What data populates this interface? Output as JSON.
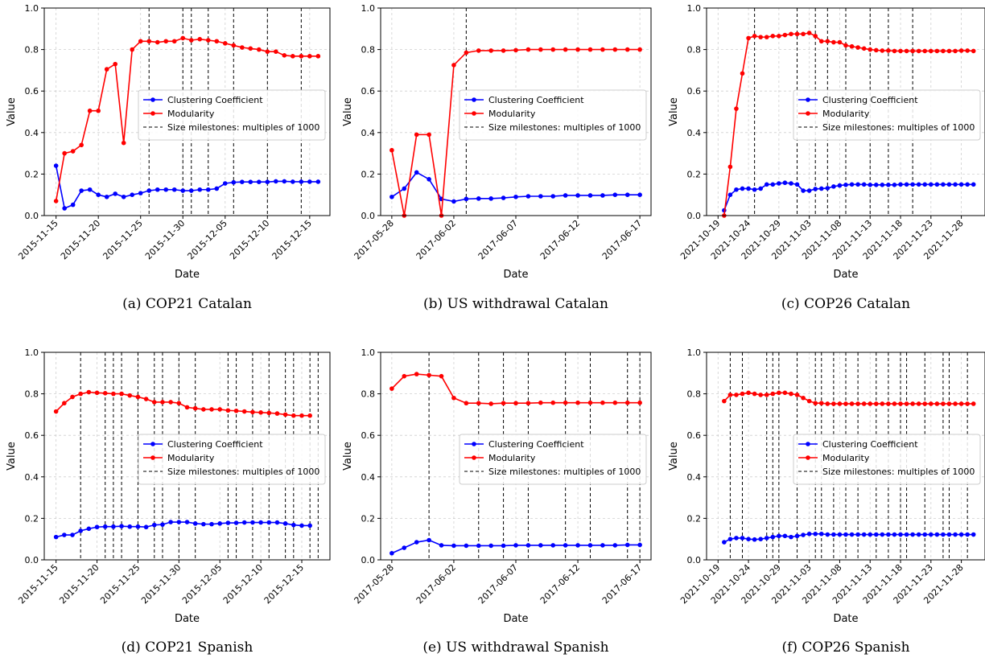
{
  "legend": {
    "clustering": "Clustering Coefficient",
    "modularity": "Modularity",
    "milestones": "Size milestones: multiples of 1000"
  },
  "colors": {
    "clustering": "#0000ff",
    "modularity": "#ff0000",
    "milestones": "#000000",
    "grid": "#b0b0b0"
  },
  "chart_data": [
    {
      "type": "line",
      "caption": "(a)  COP21 Catalan",
      "xlabel": "Date",
      "ylabel": "Value",
      "ylim": [
        0,
        1.0
      ],
      "yticks": [
        "0.0",
        "0.2",
        "0.4",
        "0.6",
        "0.8",
        "1.0"
      ],
      "x_start": "2015-11-15",
      "xticks": [
        "2015-11-15",
        "2015-11-20",
        "2015-11-25",
        "2015-11-30",
        "2015-12-05",
        "2015-12-10",
        "2015-12-15"
      ],
      "legend_position": "center-right",
      "series": [
        {
          "name": "Clustering Coefficient",
          "values": [
            0.24,
            0.035,
            0.052,
            0.12,
            0.125,
            0.1,
            0.09,
            0.105,
            0.09,
            0.1,
            0.108,
            0.12,
            0.125,
            0.125,
            0.125,
            0.12,
            0.12,
            0.125,
            0.125,
            0.13,
            0.155,
            0.16,
            0.162,
            0.162,
            0.162,
            0.162,
            0.165,
            0.165,
            0.163,
            0.163,
            0.163,
            0.163
          ]
        },
        {
          "name": "Modularity",
          "values": [
            0.07,
            0.3,
            0.31,
            0.34,
            0.505,
            0.505,
            0.705,
            0.73,
            0.35,
            0.8,
            0.84,
            0.84,
            0.835,
            0.84,
            0.84,
            0.855,
            0.845,
            0.85,
            0.845,
            0.84,
            0.83,
            0.82,
            0.81,
            0.805,
            0.8,
            0.79,
            0.79,
            0.772,
            0.768,
            0.768,
            0.768,
            0.768
          ]
        }
      ],
      "milestones": [
        "2015-11-26",
        "2015-11-30",
        "2015-12-01",
        "2015-12-03",
        "2015-12-06",
        "2015-12-10",
        "2015-12-14"
      ]
    },
    {
      "type": "line",
      "caption": "(b)  US withdrawal Catalan",
      "xlabel": "Date",
      "ylabel": "Value",
      "ylim": [
        0,
        1.0
      ],
      "yticks": [
        "0.0",
        "0.2",
        "0.4",
        "0.6",
        "0.8",
        "1.0"
      ],
      "x_start": "2017-05-28",
      "xticks": [
        "2017-05-28",
        "2017-06-02",
        "2017-06-07",
        "2017-06-12",
        "2017-06-17"
      ],
      "legend_position": "center-right",
      "series": [
        {
          "name": "Clustering Coefficient",
          "values": [
            0.09,
            0.13,
            0.208,
            0.175,
            0.08,
            0.068,
            0.08,
            0.082,
            0.082,
            0.085,
            0.09,
            0.093,
            0.093,
            0.093,
            0.097,
            0.097,
            0.097,
            0.097,
            0.1,
            0.1,
            0.1
          ]
        },
        {
          "name": "Modularity",
          "values": [
            0.315,
            0.0,
            0.39,
            0.39,
            0.0,
            0.725,
            0.785,
            0.795,
            0.795,
            0.795,
            0.797,
            0.8,
            0.8,
            0.8,
            0.8,
            0.8,
            0.8,
            0.8,
            0.8,
            0.8,
            0.8
          ]
        }
      ],
      "milestones": [
        "2017-06-03"
      ]
    },
    {
      "type": "line",
      "caption": "(c)  COP26 Catalan",
      "xlabel": "Date",
      "ylabel": "Value",
      "ylim": [
        0,
        1.0
      ],
      "yticks": [
        "0.0",
        "0.2",
        "0.4",
        "0.6",
        "0.8",
        "1.0"
      ],
      "x_start": "2021-10-20",
      "xticks": [
        "2021-10-19",
        "2021-10-24",
        "2021-10-29",
        "2021-11-03",
        "2021-11-08",
        "2021-11-13",
        "2021-11-18",
        "2021-11-23",
        "2021-11-28"
      ],
      "legend_position": "center-right",
      "series": [
        {
          "name": "Clustering Coefficient",
          "values": [
            0.025,
            0.1,
            0.125,
            0.13,
            0.13,
            0.125,
            0.13,
            0.15,
            0.15,
            0.155,
            0.158,
            0.155,
            0.15,
            0.12,
            0.12,
            0.128,
            0.13,
            0.132,
            0.14,
            0.145,
            0.148,
            0.15,
            0.15,
            0.15,
            0.148,
            0.148,
            0.148,
            0.148,
            0.148,
            0.15,
            0.15,
            0.15,
            0.15,
            0.15,
            0.15,
            0.15,
            0.15,
            0.15,
            0.15,
            0.15,
            0.15,
            0.15
          ]
        },
        {
          "name": "Modularity",
          "values": [
            0.0,
            0.235,
            0.515,
            0.685,
            0.855,
            0.865,
            0.86,
            0.86,
            0.865,
            0.865,
            0.87,
            0.875,
            0.875,
            0.875,
            0.88,
            0.865,
            0.84,
            0.84,
            0.835,
            0.835,
            0.82,
            0.815,
            0.81,
            0.805,
            0.8,
            0.797,
            0.795,
            0.795,
            0.793,
            0.793,
            0.793,
            0.793,
            0.793,
            0.793,
            0.793,
            0.793,
            0.793,
            0.793,
            0.793,
            0.795,
            0.795,
            0.793
          ]
        }
      ],
      "milestones": [
        "2021-10-25",
        "2021-11-01",
        "2021-11-04",
        "2021-11-06",
        "2021-11-09",
        "2021-11-13",
        "2021-11-16",
        "2021-11-20"
      ]
    },
    {
      "type": "line",
      "caption": "(d)  COP21 Spanish",
      "xlabel": "Date",
      "ylabel": "Value",
      "ylim": [
        0,
        1.0
      ],
      "yticks": [
        "0.0",
        "0.2",
        "0.4",
        "0.6",
        "0.8",
        "1.0"
      ],
      "x_start": "2015-11-15",
      "xticks": [
        "2015-11-15",
        "2015-11-20",
        "2015-11-25",
        "2015-11-30",
        "2015-12-05",
        "2015-12-10",
        "2015-12-15"
      ],
      "legend_position": "center-right",
      "series": [
        {
          "name": "Clustering Coefficient",
          "values": [
            0.11,
            0.12,
            0.12,
            0.14,
            0.15,
            0.158,
            0.16,
            0.16,
            0.162,
            0.16,
            0.16,
            0.158,
            0.168,
            0.17,
            0.182,
            0.182,
            0.182,
            0.175,
            0.172,
            0.172,
            0.175,
            0.178,
            0.178,
            0.18,
            0.18,
            0.18,
            0.18,
            0.18,
            0.175,
            0.168,
            0.165,
            0.165
          ]
        },
        {
          "name": "Modularity",
          "values": [
            0.715,
            0.755,
            0.785,
            0.8,
            0.808,
            0.805,
            0.803,
            0.8,
            0.8,
            0.792,
            0.785,
            0.775,
            0.76,
            0.76,
            0.76,
            0.755,
            0.735,
            0.73,
            0.725,
            0.725,
            0.725,
            0.72,
            0.718,
            0.715,
            0.712,
            0.71,
            0.708,
            0.705,
            0.7,
            0.695,
            0.695,
            0.695
          ]
        }
      ],
      "milestones": [
        "2015-11-18",
        "2015-11-21",
        "2015-11-22",
        "2015-11-23",
        "2015-11-25",
        "2015-11-27",
        "2015-11-28",
        "2015-11-30",
        "2015-12-02",
        "2015-12-06",
        "2015-12-07",
        "2015-12-09",
        "2015-12-11",
        "2015-12-13",
        "2015-12-14",
        "2015-12-16",
        "2015-12-17"
      ]
    },
    {
      "type": "line",
      "caption": "(e)  US withdrawal Spanish",
      "xlabel": "Date",
      "ylabel": "Value",
      "ylim": [
        0,
        1.0
      ],
      "yticks": [
        "0.0",
        "0.2",
        "0.4",
        "0.6",
        "0.8",
        "1.0"
      ],
      "x_start": "2017-05-28",
      "xticks": [
        "2017-05-28",
        "2017-06-02",
        "2017-06-07",
        "2017-06-12",
        "2017-06-17"
      ],
      "legend_position": "center-right",
      "series": [
        {
          "name": "Clustering Coefficient",
          "values": [
            0.032,
            0.058,
            0.085,
            0.095,
            0.07,
            0.068,
            0.068,
            0.068,
            0.068,
            0.068,
            0.07,
            0.07,
            0.07,
            0.07,
            0.07,
            0.07,
            0.07,
            0.07,
            0.07,
            0.072,
            0.072
          ]
        },
        {
          "name": "Modularity",
          "values": [
            0.825,
            0.885,
            0.895,
            0.89,
            0.885,
            0.78,
            0.755,
            0.755,
            0.752,
            0.755,
            0.755,
            0.755,
            0.757,
            0.757,
            0.757,
            0.757,
            0.757,
            0.757,
            0.757,
            0.757,
            0.757
          ]
        }
      ],
      "milestones": [
        "2017-05-31",
        "2017-06-04",
        "2017-06-06",
        "2017-06-08",
        "2017-06-11",
        "2017-06-13",
        "2017-06-16",
        "2017-06-17"
      ]
    },
    {
      "type": "line",
      "caption": "(f)  COP26 Spanish",
      "xlabel": "Date",
      "ylabel": "Value",
      "ylim": [
        0,
        1.0
      ],
      "yticks": [
        "0.0",
        "0.2",
        "0.4",
        "0.6",
        "0.8",
        "1.0"
      ],
      "x_start": "2021-10-20",
      "xticks": [
        "2021-10-19",
        "2021-10-24",
        "2021-10-29",
        "2021-11-03",
        "2021-11-08",
        "2021-11-13",
        "2021-11-18",
        "2021-11-23",
        "2021-11-28"
      ],
      "legend_position": "center-right",
      "series": [
        {
          "name": "Clustering Coefficient",
          "values": [
            0.085,
            0.1,
            0.105,
            0.105,
            0.1,
            0.098,
            0.1,
            0.105,
            0.11,
            0.115,
            0.115,
            0.11,
            0.115,
            0.12,
            0.125,
            0.125,
            0.125,
            0.122,
            0.122,
            0.122,
            0.122,
            0.122,
            0.122,
            0.122,
            0.122,
            0.122,
            0.122,
            0.122,
            0.122,
            0.122,
            0.122,
            0.122,
            0.122,
            0.122,
            0.122,
            0.122,
            0.122,
            0.122,
            0.122,
            0.122,
            0.122,
            0.122
          ]
        },
        {
          "name": "Modularity",
          "values": [
            0.765,
            0.795,
            0.795,
            0.8,
            0.805,
            0.8,
            0.795,
            0.795,
            0.8,
            0.805,
            0.805,
            0.8,
            0.795,
            0.78,
            0.765,
            0.755,
            0.755,
            0.752,
            0.752,
            0.752,
            0.752,
            0.752,
            0.752,
            0.752,
            0.752,
            0.752,
            0.752,
            0.752,
            0.752,
            0.752,
            0.752,
            0.752,
            0.752,
            0.752,
            0.752,
            0.752,
            0.752,
            0.752,
            0.752,
            0.752,
            0.752,
            0.752
          ]
        }
      ],
      "milestones": [
        "2021-10-21",
        "2021-10-23",
        "2021-10-27",
        "2021-10-28",
        "2021-10-29",
        "2021-11-01",
        "2021-11-04",
        "2021-11-05",
        "2021-11-07",
        "2021-11-09",
        "2021-11-11",
        "2021-11-14",
        "2021-11-16",
        "2021-11-18",
        "2021-11-19",
        "2021-11-22",
        "2021-11-25",
        "2021-11-26",
        "2021-11-29"
      ]
    }
  ]
}
